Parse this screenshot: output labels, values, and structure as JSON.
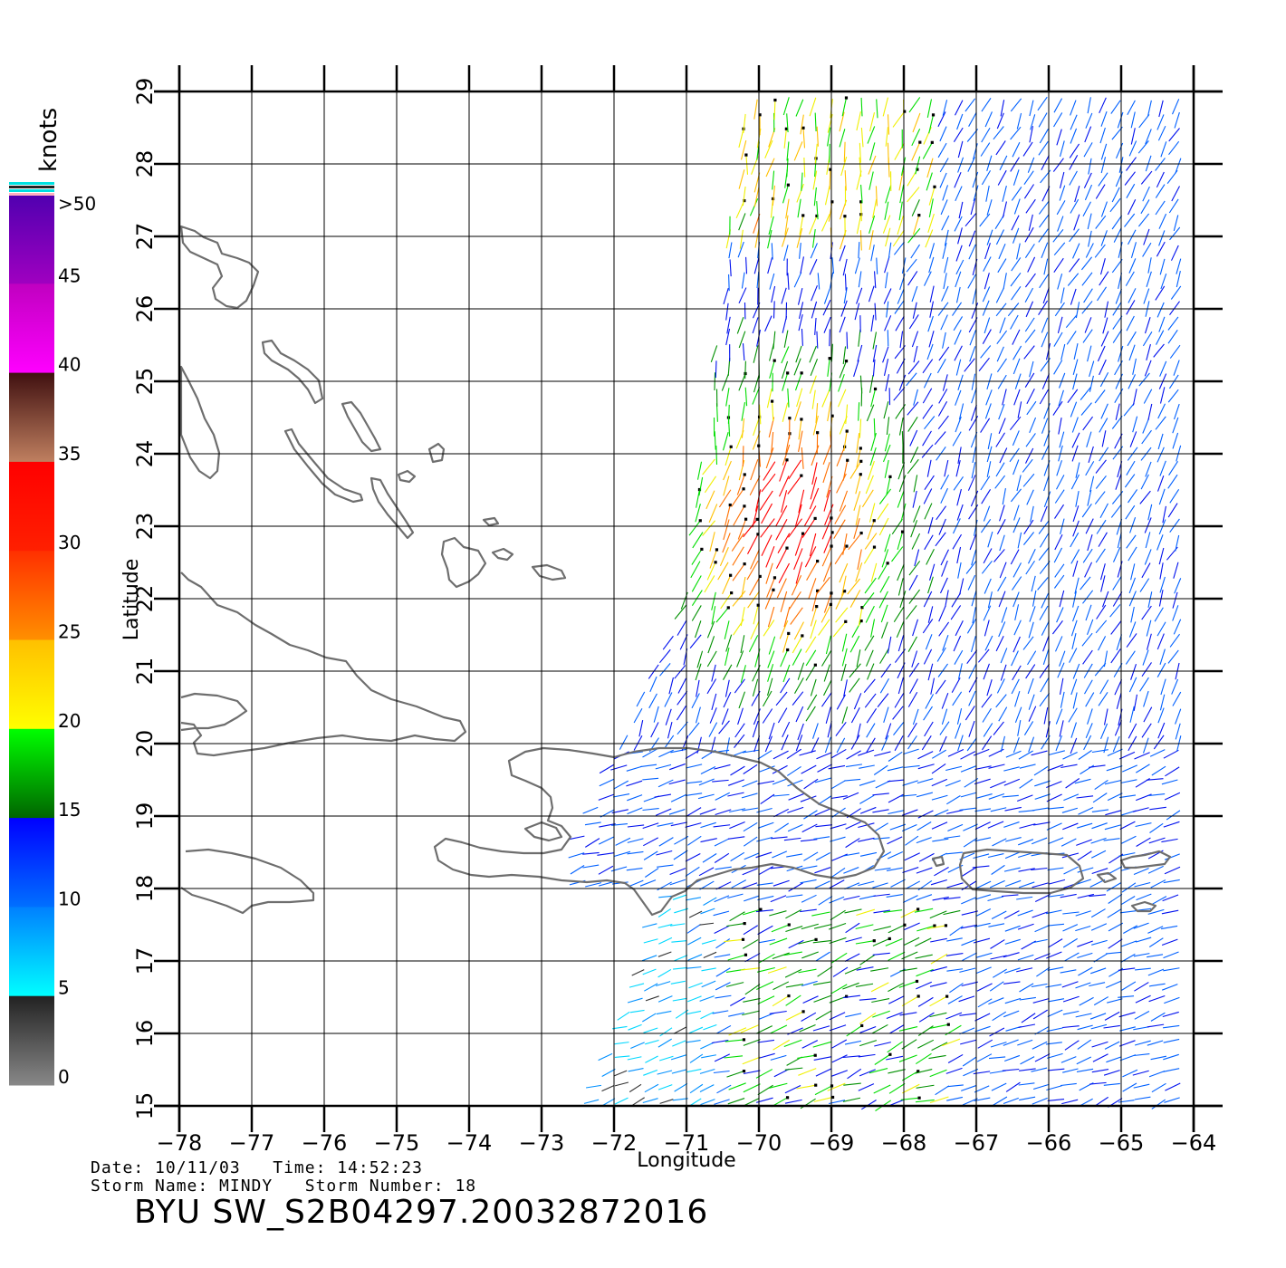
{
  "map": {
    "lon_range": [
      -78,
      -64
    ],
    "lat_range": [
      15,
      29
    ],
    "lon_ticks": [
      "−78",
      "−77",
      "−76",
      "−75",
      "−74",
      "−73",
      "−72",
      "−71",
      "−70",
      "−69",
      "−68",
      "−67",
      "−66",
      "−65",
      "−64"
    ],
    "lat_ticks": [
      "15",
      "16",
      "17",
      "18",
      "19",
      "20",
      "21",
      "22",
      "23",
      "24",
      "25",
      "26",
      "27",
      "28",
      "29"
    ],
    "xlabel": "Longitude",
    "ylabel": "Latitude",
    "grid": true,
    "features": "wind vector barbs over Caribbean coastlines (Bahamas, Cuba, Hispaniola, Jamaica, Puerto Rico)"
  },
  "colorbar": {
    "unit": "knots",
    "ticks": [
      ">50",
      "45",
      "40",
      "35",
      "30",
      "25",
      "20",
      "15",
      "10",
      "5",
      "0"
    ],
    "colors": {
      "0_5": [
        "#888888",
        "#222222"
      ],
      "5_10": [
        "#00ffff",
        "#0080ff"
      ],
      "10_15": [
        "#0070ff",
        "#0000ff"
      ],
      "15_20": [
        "#006400",
        "#00ff00"
      ],
      "20_25": [
        "#ffff00",
        "#ffc000"
      ],
      "25_30": [
        "#ff9000",
        "#ff3000"
      ],
      "30_35": [
        "#ff2000",
        "#ff0000"
      ],
      "35_40": [
        "#c08060",
        "#401010"
      ],
      "40_45": [
        "#ff00ff",
        "#c000c0"
      ],
      "45_50": [
        "#a000c0",
        "#5000b0"
      ]
    }
  },
  "info": {
    "date_line": "Date: 10/11/03   Time: 14:52:23",
    "storm_line": "Storm Name: MINDY   Storm Number: 18",
    "product_id": "BYU SW_S2B04297.20032872016"
  }
}
